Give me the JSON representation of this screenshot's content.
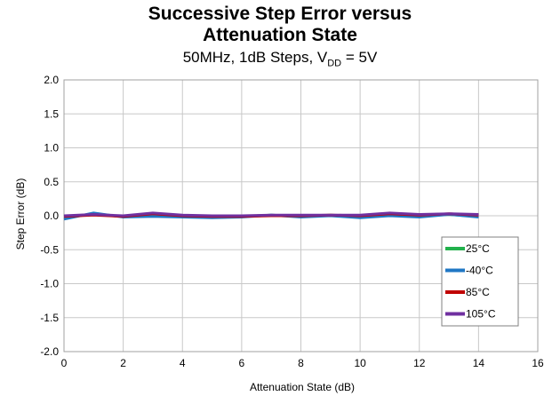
{
  "chart_data": {
    "type": "line",
    "title_line1": "Successive Step Error versus",
    "title_line2": "Attenuation State",
    "subtitle_prefix": "50MHz, 1dB Steps, V",
    "subtitle_sub": "DD",
    "subtitle_suffix": " = 5V",
    "xlabel": "Attenuation State (dB)",
    "ylabel": "Step Error (dB)",
    "xlim": [
      0,
      16
    ],
    "ylim": [
      -2.0,
      2.0
    ],
    "xticks": [
      "0",
      "2",
      "4",
      "6",
      "8",
      "10",
      "12",
      "14",
      "16"
    ],
    "yticks": [
      "2.0",
      "1.5",
      "1.0",
      "0.5",
      "0.0",
      "-0.5",
      "-1.0",
      "-1.5",
      "-2.0"
    ],
    "grid": true,
    "legend_position": "bottom-right",
    "x": [
      0,
      1,
      2,
      3,
      4,
      5,
      6,
      7,
      8,
      9,
      10,
      11,
      12,
      13,
      14
    ],
    "series": [
      {
        "name": "25°C",
        "color": "#22b14c",
        "values": [
          -0.01,
          0.02,
          -0.01,
          0.02,
          0.0,
          -0.01,
          -0.01,
          0.01,
          -0.01,
          0.01,
          -0.01,
          0.02,
          0.0,
          0.02,
          -0.01
        ]
      },
      {
        "name": "-40°C",
        "color": "#1f77c4",
        "values": [
          -0.05,
          0.04,
          -0.02,
          -0.01,
          -0.02,
          -0.03,
          -0.02,
          0.01,
          -0.02,
          0.0,
          -0.03,
          0.0,
          -0.02,
          0.02,
          -0.02
        ]
      },
      {
        "name": "85°C",
        "color": "#c00000",
        "values": [
          -0.01,
          0.01,
          -0.01,
          0.03,
          0.0,
          -0.01,
          -0.01,
          0.0,
          0.0,
          0.01,
          0.0,
          0.03,
          0.01,
          0.03,
          0.01
        ]
      },
      {
        "name": "105°C",
        "color": "#7030a0",
        "values": [
          0.0,
          0.02,
          0.0,
          0.04,
          0.01,
          0.0,
          0.0,
          0.01,
          0.01,
          0.01,
          0.01,
          0.04,
          0.02,
          0.03,
          0.02
        ]
      }
    ]
  }
}
